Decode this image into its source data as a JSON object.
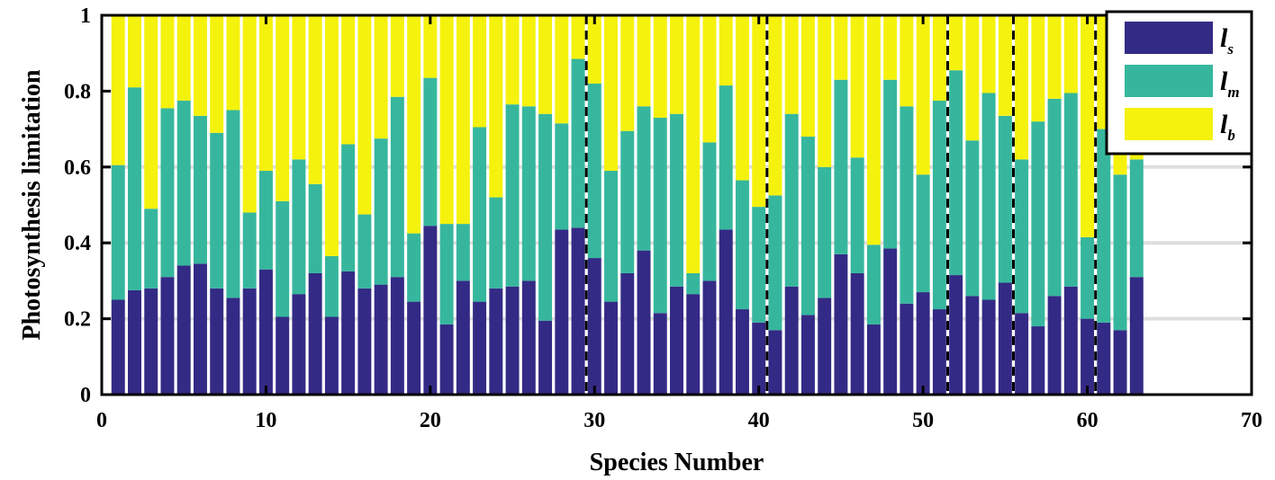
{
  "chart_data": {
    "type": "bar",
    "stacked": true,
    "xlabel": "Species Number",
    "ylabel": "Photosynthesis limitation",
    "xlim": [
      0,
      70
    ],
    "ylim": [
      0,
      1
    ],
    "xticks": [
      "0",
      "10",
      "20",
      "30",
      "40",
      "50",
      "60",
      "70"
    ],
    "yticks": [
      "0",
      "0.2",
      "0.4",
      "0.6",
      "0.8",
      "1"
    ],
    "grid": false,
    "legend_position": "top-right",
    "x": [
      1,
      2,
      3,
      4,
      5,
      6,
      7,
      8,
      9,
      10,
      11,
      12,
      13,
      14,
      15,
      16,
      17,
      18,
      19,
      20,
      21,
      22,
      23,
      24,
      25,
      26,
      27,
      28,
      29,
      30,
      31,
      32,
      33,
      34,
      35,
      36,
      37,
      38,
      39,
      40,
      41,
      42,
      43,
      44,
      45,
      46,
      47,
      48,
      49,
      50,
      51,
      52,
      53,
      54,
      55,
      56,
      57,
      58,
      59,
      60,
      61,
      62,
      63
    ],
    "series": [
      {
        "name": "ls",
        "label_main": "l",
        "label_sub": "s",
        "color": "#332A85",
        "values": [
          0.25,
          0.275,
          0.28,
          0.31,
          0.34,
          0.345,
          0.28,
          0.255,
          0.28,
          0.33,
          0.205,
          0.265,
          0.32,
          0.205,
          0.325,
          0.28,
          0.29,
          0.31,
          0.245,
          0.445,
          0.185,
          0.3,
          0.245,
          0.28,
          0.285,
          0.3,
          0.195,
          0.435,
          0.44,
          0.36,
          0.245,
          0.32,
          0.38,
          0.215,
          0.285,
          0.265,
          0.3,
          0.435,
          0.225,
          0.19,
          0.17,
          0.285,
          0.21,
          0.255,
          0.37,
          0.32,
          0.185,
          0.385,
          0.24,
          0.27,
          0.225,
          0.315,
          0.26,
          0.25,
          0.295,
          0.215,
          0.18,
          0.26,
          0.285,
          0.2,
          0.19,
          0.17,
          0.31
        ]
      },
      {
        "name": "lm",
        "label_main": "l",
        "label_sub": "m",
        "color": "#36B79D",
        "values": [
          0.355,
          0.535,
          0.21,
          0.445,
          0.435,
          0.39,
          0.41,
          0.495,
          0.2,
          0.26,
          0.305,
          0.355,
          0.235,
          0.16,
          0.335,
          0.195,
          0.385,
          0.475,
          0.18,
          0.39,
          0.265,
          0.15,
          0.46,
          0.24,
          0.48,
          0.46,
          0.545,
          0.28,
          0.445,
          0.46,
          0.345,
          0.375,
          0.38,
          0.515,
          0.455,
          0.055,
          0.365,
          0.38,
          0.34,
          0.305,
          0.355,
          0.455,
          0.47,
          0.345,
          0.46,
          0.305,
          0.21,
          0.445,
          0.52,
          0.31,
          0.55,
          0.54,
          0.41,
          0.545,
          0.44,
          0.405,
          0.54,
          0.52,
          0.51,
          0.215,
          0.51,
          0.41,
          0.31
        ]
      },
      {
        "name": "lb",
        "label_main": "l",
        "label_sub": "b",
        "color": "#F5F20D",
        "values": [
          0.395,
          0.19,
          0.51,
          0.245,
          0.225,
          0.265,
          0.31,
          0.25,
          0.52,
          0.41,
          0.49,
          0.38,
          0.445,
          0.635,
          0.34,
          0.525,
          0.325,
          0.215,
          0.575,
          0.165,
          0.55,
          0.55,
          0.295,
          0.48,
          0.235,
          0.24,
          0.26,
          0.285,
          0.115,
          0.18,
          0.41,
          0.305,
          0.24,
          0.27,
          0.26,
          0.68,
          0.335,
          0.185,
          0.435,
          0.505,
          0.475,
          0.26,
          0.32,
          0.4,
          0.17,
          0.375,
          0.605,
          0.17,
          0.24,
          0.42,
          0.225,
          0.145,
          0.33,
          0.205,
          0.265,
          0.38,
          0.28,
          0.22,
          0.205,
          0.585,
          0.3,
          0.42,
          0.38
        ]
      }
    ],
    "reference_lines_x": [
      29.5,
      40.5,
      51.5,
      55.5,
      60.5
    ],
    "reference_line_style": "dashed",
    "background_grid_lines_y": [
      0.2,
      0.4,
      0.6
    ]
  }
}
